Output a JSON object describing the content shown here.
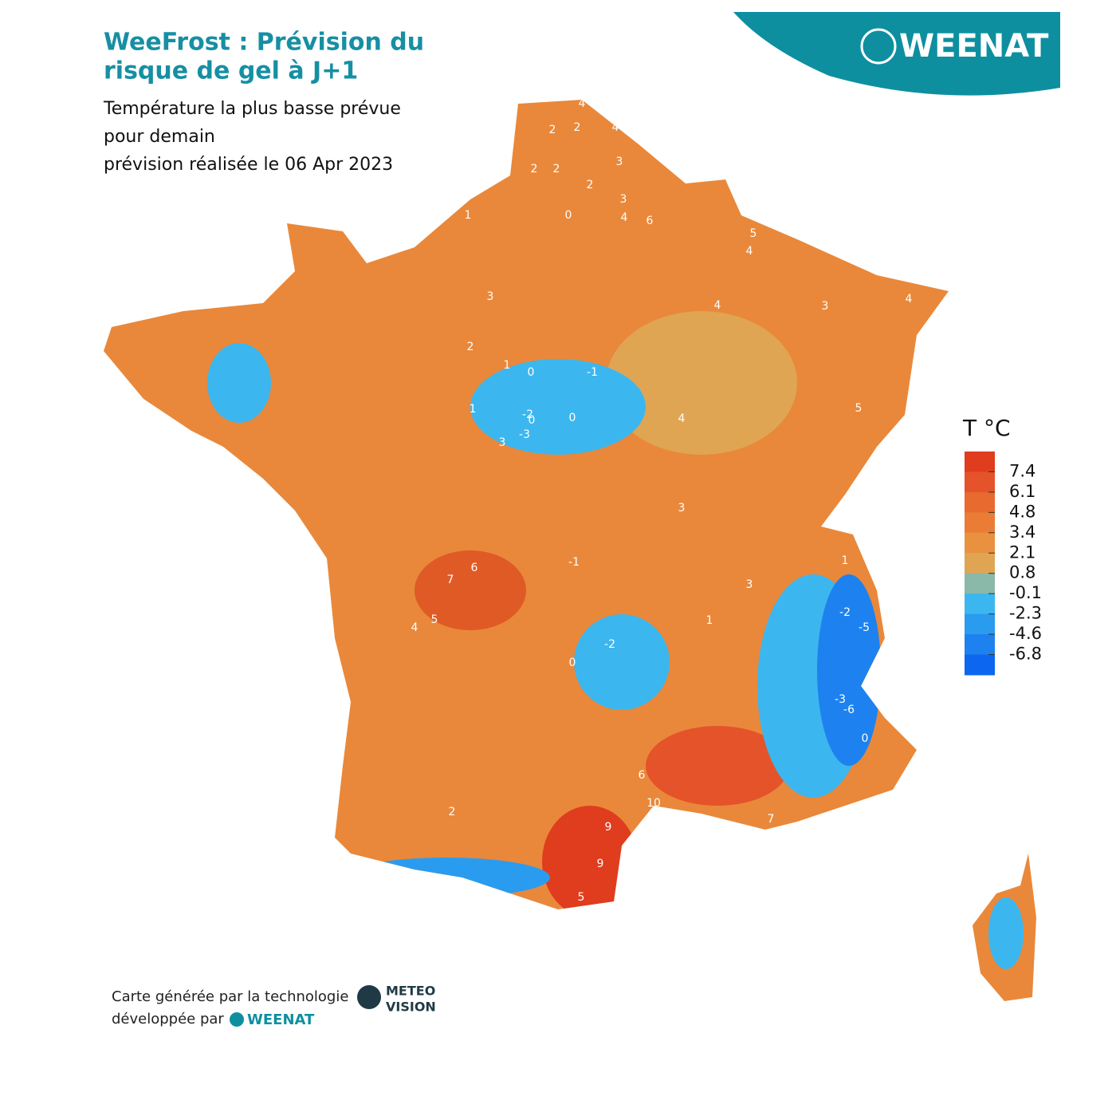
{
  "header": {
    "title_lines": [
      "WeeFrost : Prévision du",
      "risque de gel à J+1"
    ],
    "subtitle_lines": [
      "Température la plus basse prévue",
      "pour demain",
      "prévision réalisée le 06 Apr 2023"
    ],
    "logo": "WEENAT"
  },
  "legend": {
    "title": "T °C",
    "colors": [
      "#e03c1e",
      "#e5532a",
      "#e86a2e",
      "#ea7c35",
      "#e9913f",
      "#dfa553",
      "#8ab8a9",
      "#3cb6ef",
      "#2a9cf0",
      "#1d82ef",
      "#0d66ef"
    ],
    "ticks": [
      7.4,
      6.1,
      4.8,
      3.4,
      2.1,
      0.8,
      -0.1,
      -2.3,
      -4.6,
      -6.8
    ]
  },
  "map_labels": [
    4,
    2,
    2,
    4,
    3,
    2,
    2,
    1,
    0,
    3,
    4,
    6,
    4,
    5,
    4,
    3,
    2,
    0,
    -1,
    -2,
    -3,
    0,
    1,
    3,
    4,
    5,
    7,
    6,
    5,
    4,
    3,
    2,
    1,
    0,
    -1,
    -2,
    4,
    6,
    10,
    9,
    7,
    9,
    5,
    2,
    1,
    -2,
    -3,
    -5,
    -6,
    0,
    3,
    1,
    0,
    3
  ],
  "footer": {
    "line1": "Carte générée par la technologie",
    "line2": "développée par",
    "logo": "WEENAT",
    "meteo": "METEO",
    "vision": "VISION"
  }
}
